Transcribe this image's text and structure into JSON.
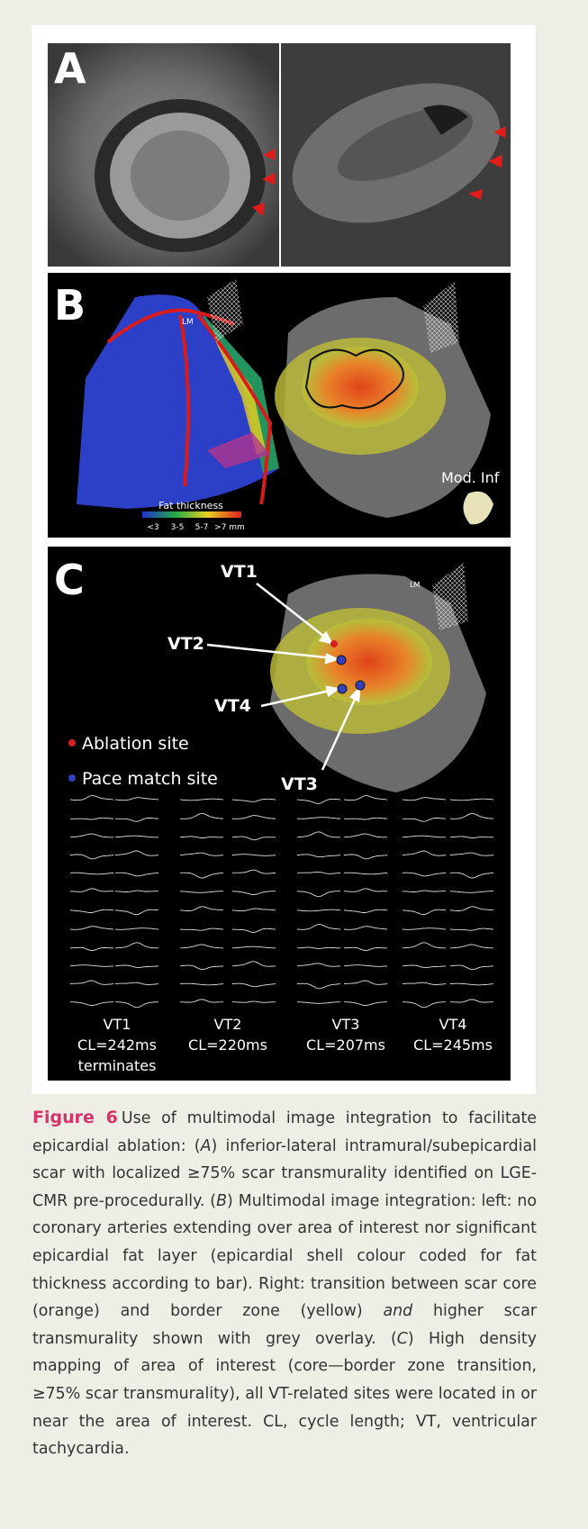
{
  "panels": [
    {
      "label": "A"
    },
    {
      "label": "B",
      "lm": "LM",
      "fat_title": "Fat thickness",
      "fat_scale": [
        "<3",
        "3-5",
        "5-7",
        ">7 mm"
      ],
      "view": "Mod. Inf"
    },
    {
      "label": "C",
      "lm": "LM",
      "sites": [
        "VT1",
        "VT2",
        "VT4",
        "VT3"
      ],
      "legend": [
        "Ablation site",
        "Pace match site"
      ],
      "ecg": [
        {
          "name": "VT1",
          "cl": "CL=242ms",
          "note": "terminates"
        },
        {
          "name": "VT2",
          "cl": "CL=220ms"
        },
        {
          "name": "VT3",
          "cl": "CL=207ms"
        },
        {
          "name": "VT4",
          "cl": "CL=245ms"
        }
      ]
    }
  ],
  "caption": {
    "label": "Figure 6",
    "parts": [
      {
        "text": "Use of multimodal image integration to facilitate epicardial ablation: ("
      },
      {
        "text": "A",
        "italic": true
      },
      {
        "text": ") inferior-lateral intramural/subepicardial scar with localized ≥75% scar transmurality identified on LGE-CMR pre-procedurally. ("
      },
      {
        "text": "B",
        "italic": true
      },
      {
        "text": ") Multimodal image integration: left: no coronary arteries extending over area of interest nor significant epicardial fat layer (epicardial shell colour coded for fat thickness according to bar). Right: transition between scar core (orange) and border zone (yellow) "
      },
      {
        "text": "and",
        "italic": true
      },
      {
        "text": " higher scar transmurality shown with grey overlay. ("
      },
      {
        "text": "C",
        "italic": true
      },
      {
        "text": ") High density mapping of area of interest (core—border zone transition, ≥75% scar transmurality), all VT-related sites were located in or near the area of interest. CL, cycle length; VT, ventricular tachycardia."
      }
    ]
  }
}
